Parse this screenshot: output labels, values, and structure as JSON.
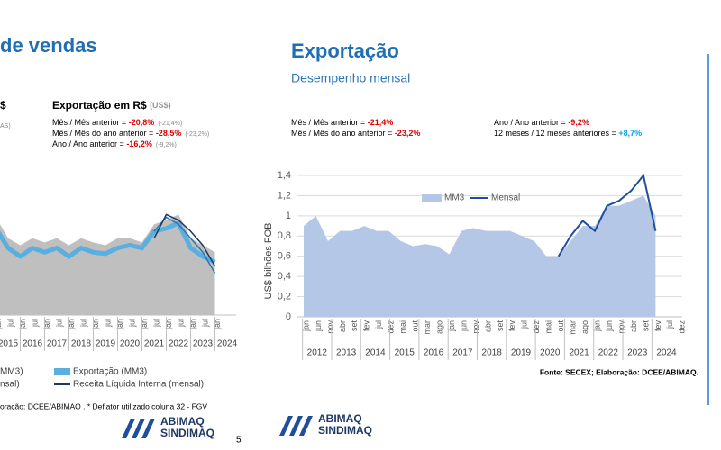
{
  "left_slide": {
    "title": "de vendas",
    "partial_heading": "$",
    "heading": "Exportação em R$",
    "heading_note": "(US$)",
    "partial_note": "AS)",
    "stats": [
      {
        "label": "Mês / Mês anterior = ",
        "value": "-20,8%",
        "note": "(-21,4%)"
      },
      {
        "label": "Mês / Mês do ano anterior = ",
        "value": "-28,5%",
        "note": "(-23,2%)"
      },
      {
        "label": "Ano / Ano anterior = ",
        "value": "-16,2%",
        "note": "(-9,2%)"
      }
    ],
    "source": "oração: DCEE/ABIMAQ . * Deflator utilizado coluna 32 - FGV",
    "page_number": 5,
    "logo": [
      "ABIMAQ",
      "SINDIMAQ"
    ]
  },
  "right_slide": {
    "title": "Exportação",
    "subtitle": "Desempenho mensal",
    "stats": [
      {
        "label": "Mês / Mês anterior = ",
        "value": "-21,4%",
        "color": "#e00000"
      },
      {
        "label": "Mês / Mês do ano anterior = ",
        "value": "-23,2%",
        "color": "#e00000"
      },
      {
        "label": "Ano / Ano anterior = ",
        "value": "-9,2%",
        "color": "#e00000"
      },
      {
        "label": "12 meses / 12 meses anteriores = ",
        "value": "+8,7%",
        "color": "#00a0e0"
      }
    ],
    "source": "Fonte: SECEX; Elaboração: DCEE/ABIMAQ.",
    "logo": [
      "ABIMAQ",
      "SINDIMAQ"
    ]
  },
  "chart_data": [
    {
      "type": "line",
      "ylim": [
        0,
        100
      ],
      "grid": false,
      "categories": [
        "jul",
        "jan",
        "jul",
        "jan",
        "jul",
        "jan",
        "jul",
        "jan",
        "jul",
        "jan",
        "jul",
        "jan",
        "jul",
        "jan",
        "jul",
        "jan",
        "jul",
        "jan",
        "jul",
        "jan"
      ],
      "years": [
        "2015",
        "2016",
        "2017",
        "2018",
        "2019",
        "2020",
        "2021",
        "2022",
        "2023",
        "2024"
      ],
      "series": [
        {
          "name": "MM3)",
          "color": "#bfbfbf",
          "fill": true,
          "values": [
            75,
            70,
            55,
            50,
            55,
            52,
            55,
            50,
            55,
            52,
            50,
            55,
            55,
            52,
            65,
            68,
            72,
            55,
            50,
            45
          ]
        },
        {
          "name": "Exportação (MM3)",
          "color": "#5aaee0",
          "width": 5,
          "values": [
            68,
            62,
            48,
            42,
            48,
            45,
            48,
            42,
            48,
            45,
            44,
            48,
            50,
            48,
            60,
            62,
            66,
            48,
            42,
            38
          ]
        },
        {
          "name": "nsal)",
          "color": "#2e75b6",
          "width": 1.5,
          "values": [
            null,
            null,
            null,
            null,
            null,
            null,
            null,
            null,
            null,
            null,
            null,
            null,
            null,
            null,
            60,
            70,
            65,
            55,
            45,
            30
          ]
        },
        {
          "name": "Receita Líquida Interna (mensal)",
          "color": "#1f3864",
          "width": 1.5,
          "values": [
            null,
            null,
            null,
            null,
            null,
            null,
            null,
            null,
            null,
            null,
            null,
            null,
            null,
            null,
            55,
            72,
            68,
            60,
            50,
            35
          ]
        }
      ]
    },
    {
      "type": "line",
      "ylabel": "US$  bilhões FOB",
      "ylim": [
        0,
        1.4
      ],
      "grid": true,
      "legend": "top-center",
      "yticks": [
        0,
        {
          "value": 0.2,
          "label": "0,2"
        },
        {
          "value": 0.4,
          "label": "0,4"
        },
        {
          "value": 0.6,
          "label": "0,6"
        },
        {
          "value": 0.8,
          "label": "0,8"
        },
        1,
        {
          "value": 1.2,
          "label": "1,2"
        },
        {
          "value": 1.4,
          "label": "1,4"
        }
      ],
      "categories": [
        "jan",
        "jun",
        "nov",
        "abr",
        "set",
        "fev",
        "jul",
        "dez",
        "mai",
        "out",
        "mar",
        "ago",
        "jan",
        "jun",
        "nov",
        "abr",
        "set",
        "fev",
        "jul",
        "dez",
        "mai",
        "out",
        "mar",
        "ago",
        "jan",
        "jun",
        "nov",
        "abr",
        "set",
        "fev",
        "jul",
        "dez"
      ],
      "years": [
        "2012",
        "2013",
        "2014",
        "2015",
        "2016",
        "2017",
        "2018",
        "2019",
        "2020",
        "2021",
        "2022",
        "2023",
        "2024"
      ],
      "series": [
        {
          "name": "MM3",
          "color": "#b4c7e7",
          "fill": true,
          "values": [
            0.9,
            1.0,
            0.75,
            0.85,
            0.85,
            0.9,
            0.85,
            0.85,
            0.75,
            0.7,
            0.72,
            0.7,
            0.62,
            0.85,
            0.88,
            0.85,
            0.85,
            0.85,
            0.8,
            0.75,
            0.6,
            0.6,
            0.75,
            0.9,
            0.9,
            1.1,
            1.1,
            1.15,
            1.2,
            1.0,
            null,
            null
          ]
        },
        {
          "name": "Mensal",
          "color": "#1f4e9c",
          "width": 2,
          "values": [
            null,
            null,
            null,
            null,
            null,
            null,
            null,
            null,
            null,
            null,
            null,
            null,
            null,
            null,
            null,
            null,
            null,
            null,
            null,
            null,
            null,
            0.6,
            0.8,
            0.95,
            0.85,
            1.1,
            1.15,
            1.25,
            1.4,
            0.85,
            null,
            null
          ]
        }
      ]
    }
  ]
}
